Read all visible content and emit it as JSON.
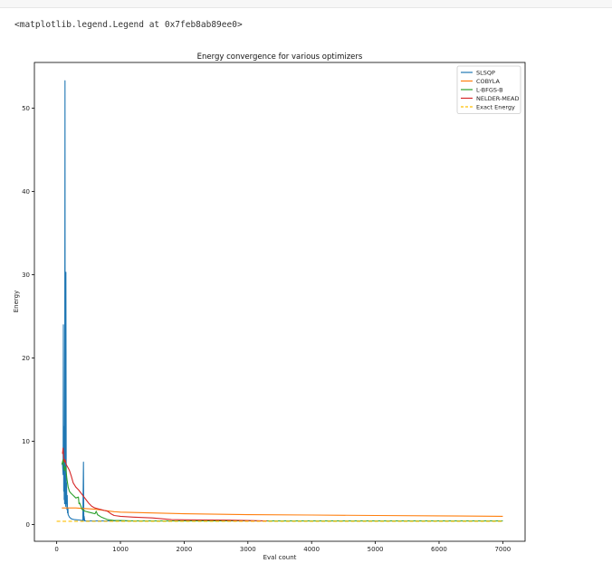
{
  "output": {
    "repr_text": "<matplotlib.legend.Legend at 0x7feb8ab89ee0>"
  },
  "colors": {
    "SLSQP": "#1f77b4",
    "COBYLA": "#ff7f0e",
    "L-BFGS-B": "#2ca02c",
    "NELDER-MEAD": "#d62728",
    "Exact Energy": "#ffbf00"
  },
  "chart_data": {
    "type": "line",
    "title": "Energy convergence for various optimizers",
    "xlabel": "Eval count",
    "ylabel": "Energy",
    "xlim": [
      -350,
      7350
    ],
    "ylim": [
      -2.0,
      55.5
    ],
    "xticks": [
      0,
      1000,
      2000,
      3000,
      4000,
      5000,
      6000,
      7000
    ],
    "yticks": [
      0,
      10,
      20,
      30,
      40,
      50
    ],
    "grid": false,
    "legend": "top-right",
    "series": [
      {
        "name": "SLSQP",
        "style": "solid",
        "x": [
          90,
          100,
          105,
          110,
          115,
          118,
          120,
          125,
          130,
          133,
          136,
          140,
          145,
          150,
          155,
          160,
          165,
          170,
          175,
          180,
          200,
          230,
          280,
          350,
          410,
          420,
          425,
          430,
          440,
          500,
          600,
          900,
          1500,
          2500,
          4000,
          5500,
          6300
        ],
        "y": [
          7.5,
          6.0,
          24.0,
          4.0,
          11.8,
          3.0,
          7.0,
          2.5,
          53.3,
          3.0,
          9.0,
          2.2,
          30.3,
          2.5,
          5.0,
          1.8,
          3.5,
          1.4,
          2.0,
          1.2,
          0.9,
          0.7,
          0.6,
          0.55,
          0.5,
          7.5,
          0.5,
          1.0,
          0.45,
          0.45,
          0.45,
          0.45,
          0.45,
          0.45,
          0.45,
          0.45,
          0.45
        ]
      },
      {
        "name": "COBYLA",
        "style": "solid",
        "x": [
          80,
          120,
          200,
          300,
          400,
          500,
          600,
          700,
          800,
          900,
          1000,
          1500,
          2000,
          3000,
          4000,
          5000,
          6000,
          7000
        ],
        "y": [
          2.0,
          2.0,
          2.0,
          2.0,
          1.95,
          1.9,
          1.85,
          1.75,
          1.65,
          1.55,
          1.5,
          1.4,
          1.3,
          1.2,
          1.15,
          1.1,
          1.05,
          1.0
        ]
      },
      {
        "name": "L-BFGS-B",
        "style": "solid",
        "x": [
          80,
          100,
          120,
          140,
          160,
          180,
          200,
          220,
          260,
          300,
          340,
          350,
          360,
          400,
          450,
          500,
          550,
          600,
          620,
          640,
          660,
          700,
          750,
          800,
          850,
          900,
          1000,
          1200,
          1600,
          2000,
          2500,
          3000,
          4000,
          5000,
          6000,
          7000
        ],
        "y": [
          7.2,
          7.8,
          6.5,
          7.0,
          5.5,
          4.5,
          4.0,
          3.8,
          3.5,
          3.2,
          3.3,
          2.5,
          2.6,
          1.8,
          1.6,
          1.5,
          1.4,
          1.3,
          1.6,
          1.2,
          1.1,
          0.9,
          0.75,
          0.6,
          0.55,
          0.5,
          0.5,
          0.45,
          0.45,
          0.45,
          0.45,
          0.45,
          0.45,
          0.45,
          0.45,
          0.45
        ]
      },
      {
        "name": "NELDER-MEAD",
        "style": "solid",
        "x": [
          90,
          100,
          110,
          120,
          130,
          150,
          180,
          200,
          230,
          260,
          300,
          340,
          380,
          420,
          460,
          500,
          550,
          600,
          650,
          700,
          750,
          800,
          850,
          900,
          1000,
          1200,
          1500,
          1800,
          2000,
          2500,
          2800,
          3000,
          3300
        ],
        "y": [
          8.5,
          9.2,
          8.0,
          7.5,
          7.8,
          7.2,
          6.8,
          6.5,
          5.8,
          5.0,
          4.5,
          4.2,
          3.8,
          3.4,
          3.0,
          2.6,
          2.2,
          2.0,
          1.9,
          1.8,
          1.7,
          1.6,
          1.3,
          1.1,
          1.0,
          0.9,
          0.8,
          0.6,
          0.58,
          0.55,
          0.52,
          0.5,
          0.45
        ]
      },
      {
        "name": "Exact Energy",
        "style": "dashed",
        "x": [
          0,
          7000
        ],
        "y": [
          0.4,
          0.4
        ]
      }
    ]
  }
}
